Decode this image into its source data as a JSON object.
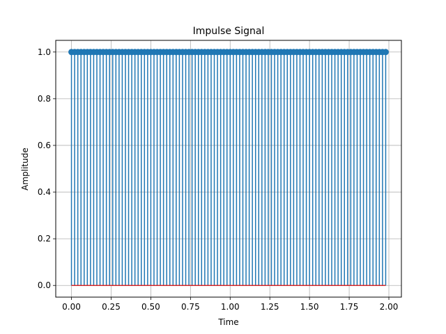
{
  "chart_data": {
    "type": "stem",
    "title": "Impulse Signal",
    "xlabel": "Time",
    "ylabel": "Amplitude",
    "xlim": [
      -0.099,
      2.079
    ],
    "ylim": [
      -0.05,
      1.05
    ],
    "grid": true,
    "x_start": 0.0,
    "x_step": 0.02,
    "n_points": 100,
    "stem_value": 1.0,
    "baseline_value": 0.0,
    "xticks": [
      0.0,
      0.25,
      0.5,
      0.75,
      1.0,
      1.25,
      1.5,
      1.75,
      2.0
    ],
    "xtick_labels": [
      "0.00",
      "0.25",
      "0.50",
      "0.75",
      "1.00",
      "1.25",
      "1.50",
      "1.75",
      "2.00"
    ],
    "yticks": [
      0.0,
      0.2,
      0.4,
      0.6,
      0.8,
      1.0
    ],
    "ytick_labels": [
      "0.0",
      "0.2",
      "0.4",
      "0.6",
      "0.8",
      "1.0"
    ],
    "colors": {
      "stem": "#1f77b4",
      "baseline": "#d62728",
      "grid": "#b0b0b0",
      "axes": "#000000"
    }
  }
}
